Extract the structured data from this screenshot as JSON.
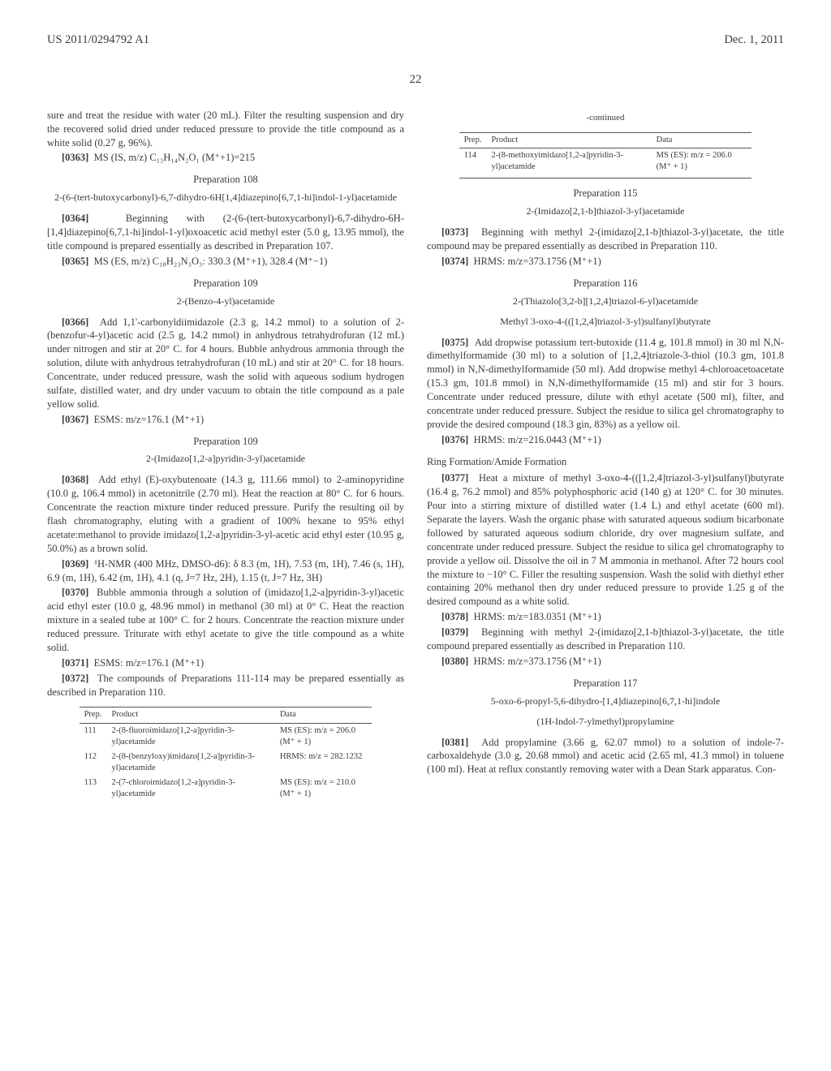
{
  "header": {
    "pub_num": "US 2011/0294792 A1",
    "date": "Dec. 1, 2011"
  },
  "page_number": "22",
  "left_col": {
    "intro1": "sure and treat the residue with water (20 mL). Filter the resulting suspension and dry the recovered solid dried under reduced pressure to provide the title compound as a white solid (0.27 g, 96%).",
    "p0363": "MS (IS, m/z) C₁₃H₁₄N₂O₁ (M⁺+1)=215",
    "prep108_title": "Preparation 108",
    "prep108_sub": "2-(6-(tert-butoxycarbonyl)-6,7-dihydro-6H[1,4]diazepino[6,7,1-hi]indol-1-yl)acetamide",
    "p0364": "Beginning with (2-(6-(tert-butoxycarbonyl)-6,7-dihydro-6H-[1,4]diazepino[6,7,1-hi]indol-1-yl)oxoacetic acid methyl ester (5.0 g, 13.95 mmol), the title compound is prepared essentially as described in Preparation 107.",
    "p0365": "MS (ES, m/z) C₁₈H₂₃N₃O₃: 330.3 (M⁺+1), 328.4 (M⁺−1)",
    "prep109a_title": "Preparation 109",
    "prep109a_sub": "2-(Benzo-4-yl)acetamide",
    "p0366": "Add 1,1'-carbonyldiimidazole (2.3 g, 14.2 mmol) to a solution of 2-(benzofur-4-yl)acetic acid (2.5 g, 14.2 mmol) in anhydrous tetrahydrofuran (12 mL) under nitrogen and stir at 20° C. for 4 hours. Bubble anhydrous ammonia through the solution, dilute with anhydrous tetrahydrofuran (10 mL) and stir at 20° C. for 18 hours. Concentrate, under reduced pressure, wash the solid with aqueous sodium hydrogen sulfate, distilled water, and dry under vacuum to obtain the title compound as a pale yellow solid.",
    "p0367": "ESMS: m/z=176.1 (M⁺+1)",
    "prep109b_title": "Preparation 109",
    "prep109b_sub": "2-(Imidazo[1,2-a]pyridin-3-yl)acetamide",
    "p0368": "Add ethyl (E)-oxybutenoate (14.3 g, 111.66 mmol) to 2-aminopyridine (10.0 g, 106.4 mmol) in acetonitrile (2.70 ml). Heat the reaction at 80° C. for 6 hours. Concentrate the reaction mixture tinder reduced pressure. Purify the resulting oil by flash chromatography, eluting with a gradient of 100% hexane to 95% ethyl acetate:methanol to provide imidazo[1,2-a]pyridin-3-yl-acetic acid ethyl ester (10.95 g, 50.0%) as a brown solid.",
    "p0369": "¹H-NMR (400 MHz, DMSO-d6): δ 8.3 (m, 1H), 7.53 (m, 1H), 7.46 (s, 1H), 6.9 (m, 1H), 6.42 (m, 1H), 4.1 (q, J=7 Hz, 2H), 1.15 (t, J=7 Hz, 3H)",
    "p0370": "Bubble ammonia through a solution of (imidazo[1,2-a]pyridin-3-yl)acetic acid ethyl ester (10.0 g, 48.96 mmol) in methanol (30 ml) at 0° C. Heat the reaction mixture in a sealed tube at 100° C. for 2 hours. Concentrate the reaction mixture under reduced pressure. Triturate with ethyl acetate to give the title compound as a white solid.",
    "p0371": "ESMS: m/z=176.1 (M⁺+1)",
    "p0372": "The compounds of Preparations 111-114 may be prepared essentially as described in Preparation 110.",
    "table1": {
      "cols": [
        "Prep.",
        "Product",
        "Data"
      ],
      "rows": [
        [
          "111",
          "2-(8-fluoroimidazo[1,2-a]pyridin-3-yl)acetamide",
          "MS (ES): m/z = 206.0 (M⁺ + 1)"
        ],
        [
          "112",
          "2-(8-(benzyloxy)imidazo[1,2-a]pyridin-3-yl)acetamide",
          "HRMS: m/z = 282.1232"
        ],
        [
          "113",
          "2-(7-chloroimidazo[1,2-a]pyridin-3-yl)acetamide",
          "MS (ES): m/z = 210.0 (M⁺ + 1)"
        ]
      ]
    }
  },
  "right_col": {
    "continued": "-continued",
    "table2": {
      "cols": [
        "Prep.",
        "Product",
        "Data"
      ],
      "rows": [
        [
          "114",
          "2-(8-methoxyimidazo[1,2-a]pyridin-3-yl)acetamide",
          "MS (ES): m/z = 206.0 (M⁺ + 1)"
        ]
      ]
    },
    "prep115_title": "Preparation 115",
    "prep115_sub": "2-(Imidazo[2,1-b]thiazol-3-yl)acetamide",
    "p0373": "Beginning with methyl 2-(imidazo[2,1-b]thiazol-3-yl)acetate, the title compound may be prepared essentially as described in Preparation 110.",
    "p0374": "HRMS: m/z=373.1756 (M⁺+1)",
    "prep116_title": "Preparation 116",
    "prep116_sub": "2-(Thiazolo[3,2-b][1,2,4]triazol-6-yl)acetamide",
    "prep116_sub2": "Methyl 3-oxo-4-(([1,2,4]triazol-3-yl)sulfanyl)butyrate",
    "p0375": "Add dropwise potassium tert-butoxide (11.4 g, 101.8 mmol) in 30 ml N,N-dimethylformamide (30 ml) to a solution of [1,2,4]triazole-3-thiol (10.3 gm, 101.8 mmol) in N,N-dimethylformamide (50 ml). Add dropwise methyl 4-chloroacetoacetate (15.3 gm, 101.8 mmol) in N,N-dimethylformamide (15 ml) and stir for 3 hours. Concentrate under reduced pressure, dilute with ethyl acetate (500 ml), filter, and concentrate under reduced pressure. Subject the residue to silica gel chromatography to provide the desired compound (18.3 gin, 83%) as a yellow oil.",
    "p0376": "HRMS: m/z=216.0443 (M⁺+1)",
    "ring_head": "Ring Formation/Amide Formation",
    "p0377": "Heat a mixture of methyl 3-oxo-4-(([1,2,4]triazol-3-yl)sulfanyl)butyrate (16.4 g, 76.2 mmol) and 85% polyphosphoric acid (140 g) at 120° C. for 30 minutes. Pour into a stirring mixture of distilled water (1.4 L) and ethyl acetate (600 ml). Separate the layers. Wash the organic phase with saturated aqueous sodium bicarbonate followed by saturated aqueous sodium chloride, dry over magnesium sulfate, and concentrate under reduced pressure. Subject the residue to silica gel chromatography to provide a yellow oil. Dissolve the oil in 7 M ammonia in methanol. After 72 hours cool the mixture to −10° C. Filler the resulting suspension. Wash the solid with diethyl ether containing 20% methanol then dry under reduced pressure to provide 1.25 g of the desired compound as a white solid.",
    "p0378": "HRMS: m/z=183.0351 (M⁺+1)",
    "p0379": "Beginning with methyl 2-(imidazo[2,1-b]thiazol-3-yl)acetate, the title compound prepared essentially as described in Preparation 110.",
    "p0380": "HRMS: m/z=373.1756 (M⁺+1)",
    "prep117_title": "Preparation 117",
    "prep117_sub": "5-oxo-6-propyl-5,6-dihydro-[1,4]diazepino[6,7,1-hi]indole",
    "prep117_sub2": "(1H-Indol-7-ylmethyl)propylamine",
    "p0381": "Add propylamine (3.66 g, 62.07 mmol) to a solution of indole-7-carboxaldehyde (3.0 g, 20.68 mmol) and acetic acid (2.65 ml, 41.3 mmol) in toluene (100 ml). Heat at reflux constantly removing water with a Dean Stark apparatus. Con-"
  }
}
